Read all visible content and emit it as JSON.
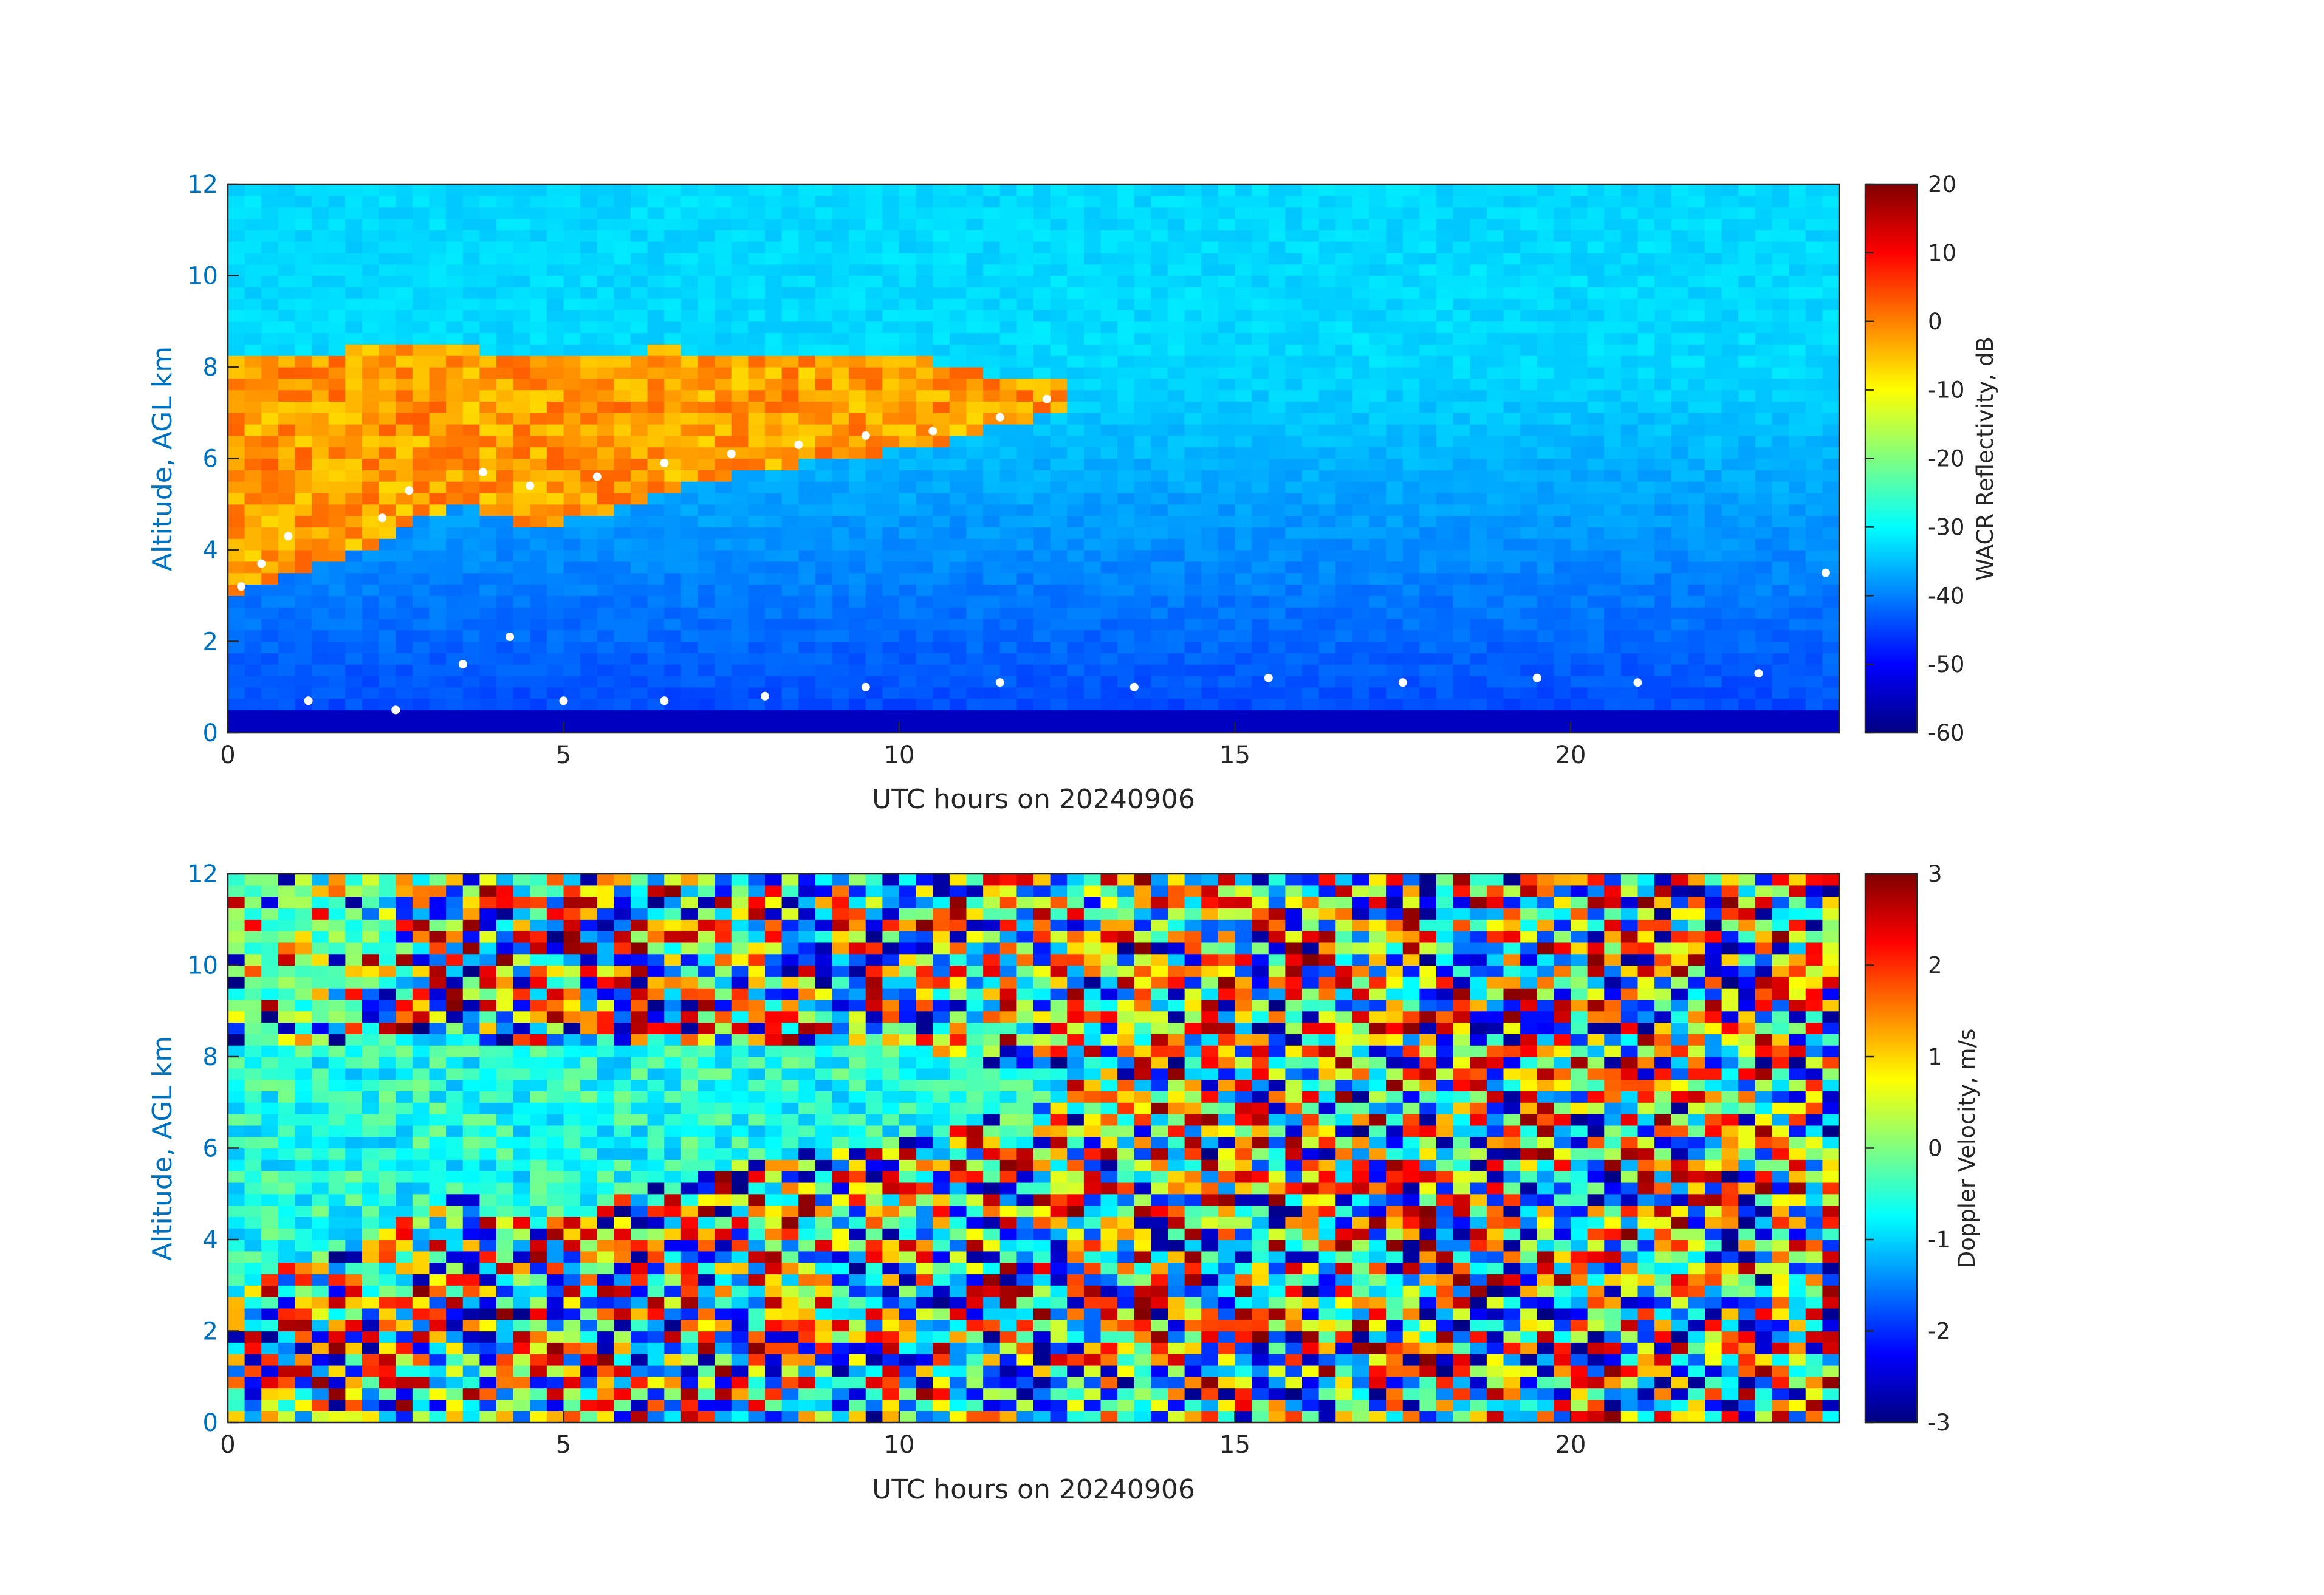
{
  "colors": {
    "axis_label": "#0072BD",
    "tick_text": "#262626",
    "axis_line": "#262626",
    "jet": [
      "#000080",
      "#0000ff",
      "#0080ff",
      "#00ffff",
      "#80ff80",
      "#ffff00",
      "#ff8000",
      "#ff0000",
      "#800000"
    ]
  },
  "chart_data": [
    {
      "type": "heatmap",
      "xlabel": "UTC hours on 20240906",
      "ylabel": "Altitude, AGL km",
      "colorbar_label": "WACR Reflectivity, dB",
      "xlim": [
        0,
        24
      ],
      "ylim": [
        0,
        12
      ],
      "clim": [
        -60,
        20
      ],
      "xticks": [
        0,
        5,
        10,
        15,
        20
      ],
      "yticks": [
        0,
        2,
        4,
        6,
        8,
        10,
        12
      ],
      "cticks": [
        -60,
        -50,
        -40,
        -30,
        -20,
        -10,
        0,
        10,
        20
      ],
      "background_value_upper": -33,
      "background_value_lower": -45,
      "cloud_layers": [
        {
          "x": [
            0,
            1,
            2,
            3,
            3.5,
            4.5,
            5.5,
            6.5,
            7.5,
            8.5,
            9.5,
            10.5,
            11.5,
            12.5
          ],
          "top": [
            8.2,
            8.3,
            8.4,
            8.4,
            8.4,
            8.3,
            8.3,
            8.4,
            8.3,
            8.2,
            8.3,
            8.1,
            7.8,
            7.7
          ],
          "base": [
            3.0,
            3.5,
            4.0,
            4.8,
            5.0,
            4.5,
            4.8,
            5.3,
            5.6,
            5.9,
            6.1,
            6.3,
            6.7,
            7.0
          ],
          "value": -2
        }
      ],
      "cloud_base_points": [
        {
          "x": 0.2,
          "y": 3.2
        },
        {
          "x": 0.5,
          "y": 3.7
        },
        {
          "x": 0.9,
          "y": 4.3
        },
        {
          "x": 2.3,
          "y": 4.7
        },
        {
          "x": 2.7,
          "y": 5.3
        },
        {
          "x": 3.8,
          "y": 5.7
        },
        {
          "x": 4.5,
          "y": 5.4
        },
        {
          "x": 5.5,
          "y": 5.6
        },
        {
          "x": 6.5,
          "y": 5.9
        },
        {
          "x": 7.5,
          "y": 6.1
        },
        {
          "x": 8.5,
          "y": 6.3
        },
        {
          "x": 9.5,
          "y": 6.5
        },
        {
          "x": 10.5,
          "y": 6.6
        },
        {
          "x": 11.5,
          "y": 6.9
        },
        {
          "x": 12.2,
          "y": 7.3
        },
        {
          "x": 1.2,
          "y": 0.7
        },
        {
          "x": 2.5,
          "y": 0.5
        },
        {
          "x": 3.5,
          "y": 1.5
        },
        {
          "x": 4.2,
          "y": 2.1
        },
        {
          "x": 5.0,
          "y": 0.7
        },
        {
          "x": 6.5,
          "y": 0.7
        },
        {
          "x": 8.0,
          "y": 0.8
        },
        {
          "x": 9.5,
          "y": 1.0
        },
        {
          "x": 11.5,
          "y": 1.1
        },
        {
          "x": 13.5,
          "y": 1.0
        },
        {
          "x": 15.5,
          "y": 1.2
        },
        {
          "x": 17.5,
          "y": 1.1
        },
        {
          "x": 19.5,
          "y": 1.2
        },
        {
          "x": 21.0,
          "y": 1.1
        },
        {
          "x": 22.8,
          "y": 1.3
        },
        {
          "x": 23.8,
          "y": 3.5
        }
      ]
    },
    {
      "type": "heatmap",
      "xlabel": "UTC hours on 20240906",
      "ylabel": "Altitude, AGL km",
      "colorbar_label": "Doppler Velocity, m/s",
      "xlim": [
        0,
        24
      ],
      "ylim": [
        0,
        12
      ],
      "clim": [
        -3,
        3
      ],
      "xticks": [
        0,
        5,
        10,
        15,
        20
      ],
      "yticks": [
        0,
        2,
        4,
        6,
        8,
        10,
        12
      ],
      "cticks": [
        -3,
        -2,
        -1,
        0,
        1,
        2,
        3
      ],
      "background": "random noise",
      "cloud_layers": [
        {
          "x": [
            0,
            1,
            2,
            3,
            3.5,
            4.5,
            5.5,
            6.5,
            7.5,
            8.5,
            9.5,
            10.5,
            11.5,
            12.5
          ],
          "top": [
            8.2,
            8.3,
            8.4,
            8.4,
            8.4,
            8.3,
            8.3,
            8.4,
            8.3,
            8.2,
            8.3,
            8.1,
            7.8,
            7.7
          ],
          "base": [
            3.0,
            3.5,
            4.0,
            4.8,
            5.0,
            4.5,
            4.8,
            5.3,
            5.6,
            5.9,
            6.1,
            6.3,
            6.7,
            7.0
          ],
          "value": -0.6
        }
      ]
    }
  ]
}
